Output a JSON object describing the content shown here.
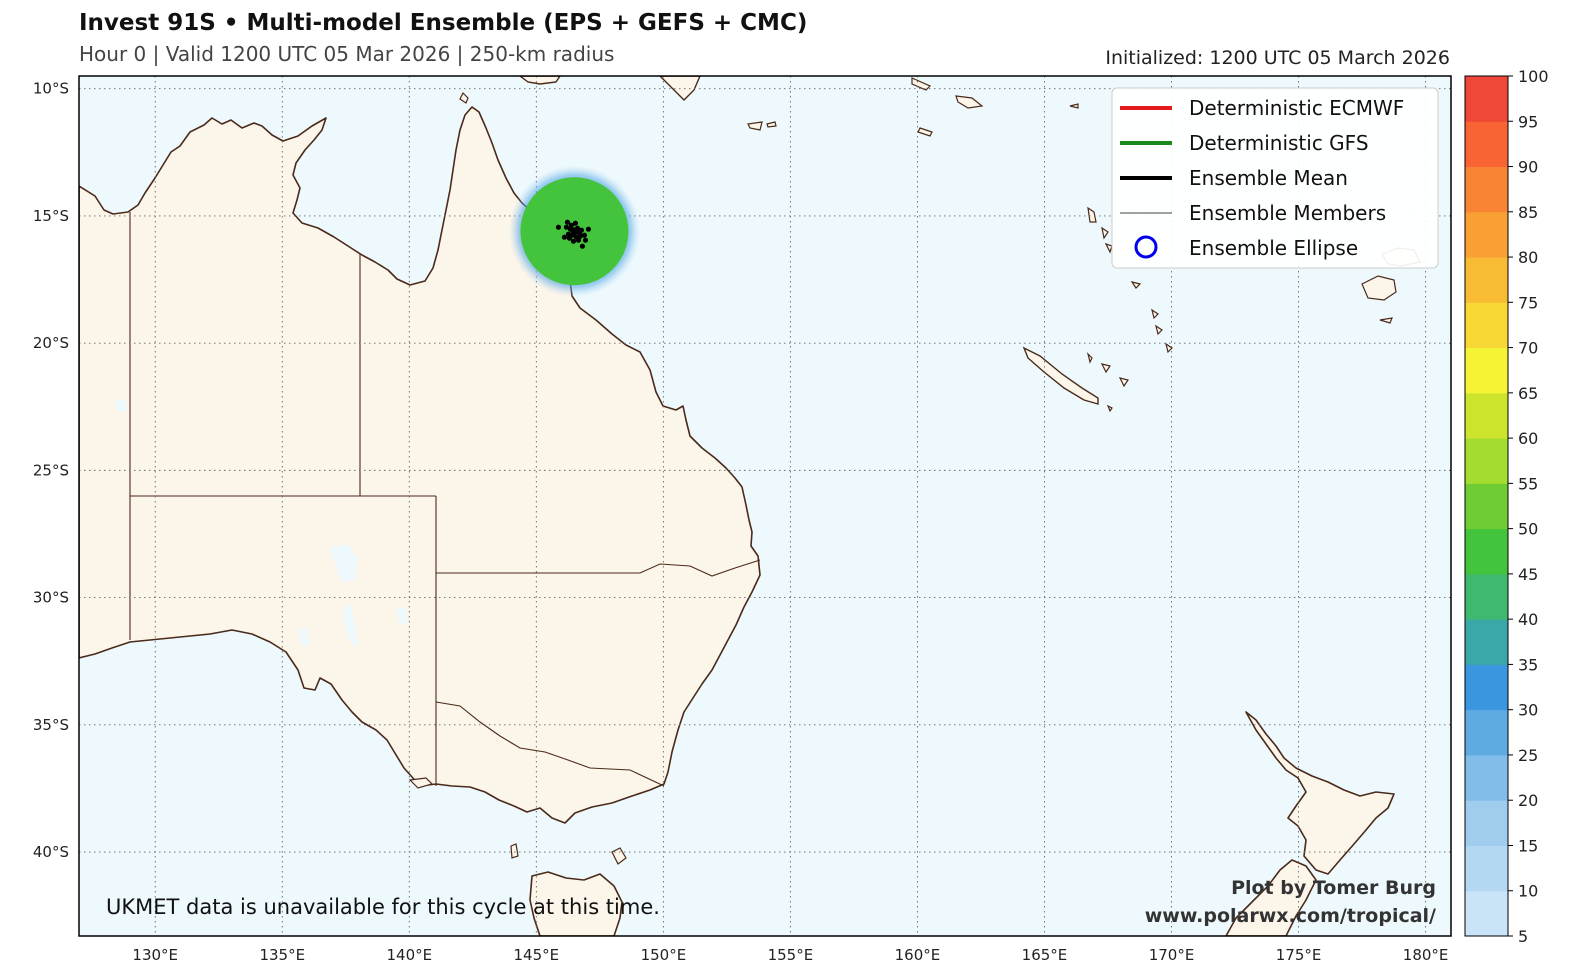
{
  "header": {
    "title": "Invest 91S • Multi-model Ensemble (EPS + GEFS + CMC)",
    "subtitle": "Hour 0 | Valid 1200 UTC 05 Mar 2026 | 250-km radius",
    "initialized": "Initialized: 1200 UTC 05 March 2026"
  },
  "map": {
    "lon_range": [
      127,
      181
    ],
    "lat_range": [
      -43.3,
      -9.5
    ],
    "lon_ticks": [
      "130°E",
      "135°E",
      "140°E",
      "145°E",
      "150°E",
      "155°E",
      "160°E",
      "165°E",
      "170°E",
      "175°E",
      "180°E"
    ],
    "lat_ticks": [
      "10°S",
      "15°S",
      "20°S",
      "25°S",
      "30°S",
      "35°S",
      "40°S"
    ],
    "ocean_color": "#eef9fd",
    "land_color": "#fcf5ea",
    "coast_color": "#4a2a1a",
    "grid": "dotted"
  },
  "legend": {
    "items": [
      {
        "label": "Deterministic ECMWF",
        "color": "#e41a1c",
        "style": "thick-line"
      },
      {
        "label": "Deterministic GFS",
        "color": "#1a8a1a",
        "style": "thick-line"
      },
      {
        "label": "Ensemble Mean",
        "color": "#000000",
        "style": "thick-line"
      },
      {
        "label": "Ensemble Members",
        "color": "#000000",
        "style": "thin-line"
      },
      {
        "label": "Ensemble Ellipse",
        "color": "#0000ee",
        "style": "circle"
      }
    ]
  },
  "probability_field": {
    "center_lon": 146.5,
    "center_lat": -15.6,
    "value_percent": 40,
    "fill_color": "#44c43c"
  },
  "colorbar": {
    "ticks": [
      "5",
      "10",
      "15",
      "20",
      "25",
      "30",
      "35",
      "40",
      "45",
      "50",
      "55",
      "60",
      "65",
      "70",
      "75",
      "80",
      "85",
      "90",
      "95",
      "100"
    ],
    "colors": [
      "#c8e4f6",
      "#b4d8f2",
      "#a0ccee",
      "#82bce8",
      "#60aae2",
      "#3a96de",
      "#3aa8a8",
      "#3fb870",
      "#44c43c",
      "#70cc34",
      "#a4dc30",
      "#cce42c",
      "#f4f434",
      "#f8d834",
      "#f8bc34",
      "#f8a034",
      "#f88434",
      "#f86434",
      "#f04838",
      "#e83838"
    ]
  },
  "footer": {
    "note": "UKMET data is unavailable for this cycle at this time.",
    "credit_line1": "Plot by Tomer Burg",
    "credit_line2": "www.polarwx.com/tropical/"
  }
}
